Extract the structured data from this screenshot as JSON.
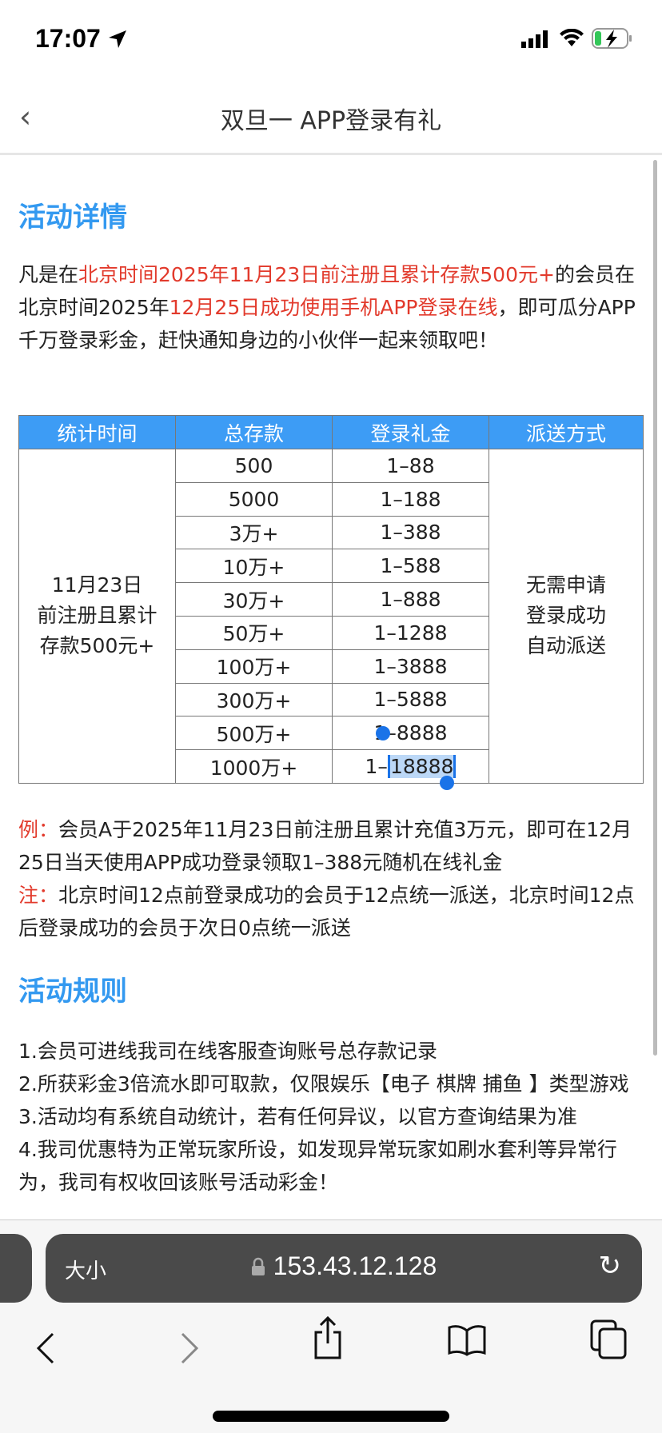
{
  "status": {
    "time": "17:07",
    "icons": [
      "location-arrow-icon",
      "signal-icon",
      "wifi-icon",
      "battery-charging-icon"
    ]
  },
  "nav": {
    "title": "双旦一 APP登录有礼",
    "back": "‹"
  },
  "section1": {
    "title": "活动详情",
    "intro": [
      {
        "t": "凡是在",
        "red": false
      },
      {
        "t": "北京时间2025年11月23日前注册且累计存款500元+",
        "red": true
      },
      {
        "t": "的会员在北京时间2025年",
        "red": false
      },
      {
        "t": "12月25日成功使用手机APP登录在线",
        "red": true
      },
      {
        "t": "，即可瓜分APP千万登录彩金，赶快通知身边的小伙伴一起来领取吧！",
        "red": false
      }
    ]
  },
  "table": {
    "headers": [
      "统计时间",
      "总存款",
      "登录礼金",
      "派送方式"
    ],
    "period": [
      "11月23日",
      "前注册且累计",
      "存款500元+"
    ],
    "rows": [
      [
        "500",
        "1–88"
      ],
      [
        "5000",
        "1–188"
      ],
      [
        "3万+",
        "1–388"
      ],
      [
        "10万+",
        "1–588"
      ],
      [
        "30万+",
        "1–888"
      ],
      [
        "50万+",
        "1–1288"
      ],
      [
        "100万+",
        "1–3888"
      ],
      [
        "300万+",
        "1–5888"
      ],
      [
        "500万+",
        "1–8888"
      ],
      [
        "1000万+",
        "1–",
        "18888"
      ]
    ],
    "method": [
      "无需申请",
      "登录成功",
      "自动派送"
    ]
  },
  "notes": {
    "ex_label": "例：",
    "ex_text": "会员A于2025年11月23日前注册且累计充值3万元，即可在12月25日当天使用APP成功登录领取1–388元随机在线礼金",
    "note_label": "注：",
    "note_text": "北京时间12点前登录成功的会员于12点统一派送，北京时间12点后登录成功的会员于次日0点统一派送"
  },
  "section2": {
    "title": "活动规则",
    "rules": [
      "1.会员可进线我司在线客服查询账号总存款记录",
      "2.所获彩金3倍流水即可取款，仅限娱乐【电子 棋牌 捕鱼 】类型游戏",
      "3.活动均有系统自动统计，若有任何异议，以官方查询结果为准",
      "4.我司优惠特为正常玩家所设，如发现异常玩家如刷水套利等异常行为，我司有权收回该账号活动彩金！"
    ]
  },
  "browser": {
    "text_size": "大小",
    "url": "153.43.12.128"
  },
  "colors": {
    "accent": "#3d9cf5",
    "heading": "#3399f0",
    "highlight": "#e23a2c"
  }
}
